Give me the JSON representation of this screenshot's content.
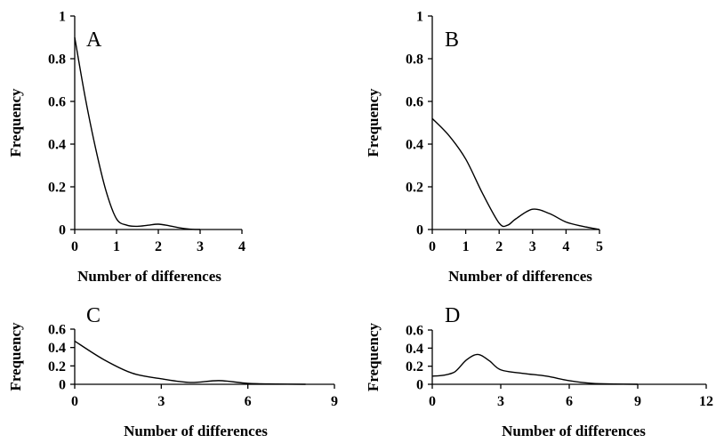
{
  "chart_data": [
    {
      "type": "line",
      "panel_label": "A",
      "xlabel": "Number of differences",
      "ylabel": "Frequency",
      "xlim": [
        0,
        4
      ],
      "ylim": [
        0,
        1
      ],
      "xticks": [
        0,
        1,
        2,
        3,
        4
      ],
      "yticks": [
        0,
        0.2,
        0.4,
        0.6,
        0.8,
        1
      ],
      "x": [
        0,
        0.25,
        0.5,
        0.75,
        1.0,
        1.25,
        1.5,
        1.75,
        2.0,
        2.25,
        2.5,
        2.75,
        3.0
      ],
      "y": [
        0.9,
        0.62,
        0.38,
        0.18,
        0.05,
        0.02,
        0.015,
        0.02,
        0.025,
        0.018,
        0.008,
        0.002,
        0.0
      ]
    },
    {
      "type": "line",
      "panel_label": "B",
      "xlabel": "Number of differences",
      "ylabel": "Frequency",
      "xlim": [
        0,
        5
      ],
      "ylim": [
        0,
        1
      ],
      "xticks": [
        0,
        1,
        2,
        3,
        4,
        5
      ],
      "yticks": [
        0,
        0.2,
        0.4,
        0.6,
        0.8,
        1
      ],
      "x": [
        0,
        0.5,
        1.0,
        1.5,
        2.0,
        2.25,
        2.5,
        3.0,
        3.5,
        4.0,
        4.5,
        5.0
      ],
      "y": [
        0.52,
        0.44,
        0.33,
        0.17,
        0.03,
        0.02,
        0.05,
        0.095,
        0.075,
        0.035,
        0.015,
        0.0
      ]
    },
    {
      "type": "line",
      "panel_label": "C",
      "xlabel": "Number of differences",
      "ylabel": "Frequency",
      "xlim": [
        0,
        9
      ],
      "ylim": [
        0,
        0.6
      ],
      "xticks": [
        0,
        3,
        6,
        9
      ],
      "yticks": [
        0,
        0.2,
        0.4,
        0.6
      ],
      "x": [
        0,
        1,
        2,
        3,
        4,
        5,
        6,
        7,
        8
      ],
      "y": [
        0.47,
        0.27,
        0.12,
        0.06,
        0.02,
        0.04,
        0.01,
        0.003,
        0.0
      ]
    },
    {
      "type": "line",
      "panel_label": "D",
      "xlabel": "Number of differences",
      "ylabel": "Frequency",
      "xlim": [
        0,
        12
      ],
      "ylim": [
        0,
        0.6
      ],
      "xticks": [
        0,
        3,
        6,
        9,
        12
      ],
      "yticks": [
        0,
        0.2,
        0.4,
        0.6
      ],
      "x": [
        0,
        0.5,
        1.0,
        1.5,
        2.0,
        2.5,
        3.0,
        4.0,
        5.0,
        6.0,
        7.0,
        8.0,
        9.0
      ],
      "y": [
        0.09,
        0.1,
        0.14,
        0.27,
        0.33,
        0.26,
        0.16,
        0.12,
        0.09,
        0.04,
        0.01,
        0.003,
        0.0
      ]
    }
  ]
}
